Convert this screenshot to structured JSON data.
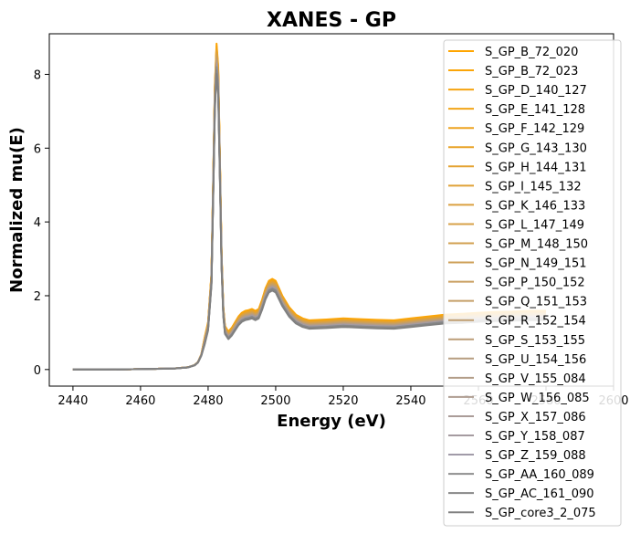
{
  "chart_data": {
    "type": "line",
    "title": "XANES - GP",
    "xlabel": "Energy (eV)",
    "ylabel": "Normalized mu(E)",
    "xlim": [
      2433,
      2600
    ],
    "ylim": [
      -0.45,
      9.1
    ],
    "xticks": [
      2440,
      2460,
      2480,
      2500,
      2520,
      2540,
      2560,
      2580,
      2600
    ],
    "yticks": [
      0,
      2,
      4,
      6,
      8
    ],
    "grid": false,
    "legend_position": "upper-right",
    "x": [
      2440,
      2450,
      2460,
      2465,
      2470,
      2474,
      2476,
      2477,
      2478,
      2479,
      2480,
      2481,
      2481.5,
      2482,
      2482.5,
      2483,
      2483.5,
      2484,
      2484.5,
      2485,
      2486,
      2487,
      2488,
      2489,
      2490,
      2491,
      2492,
      2493,
      2494,
      2495,
      2496,
      2497,
      2498,
      2499,
      2500,
      2501,
      2502,
      2504,
      2506,
      2508,
      2510,
      2515,
      2520,
      2525,
      2530,
      2535,
      2540,
      2545,
      2550,
      2555,
      2560,
      2565,
      2570,
      2575,
      2580
    ],
    "reference_values": [
      0,
      0,
      0.01,
      0.02,
      0.03,
      0.06,
      0.12,
      0.2,
      0.4,
      0.8,
      1.2,
      2.5,
      5.0,
      7.5,
      8.6,
      8.0,
      5.5,
      3.0,
      1.6,
      1.1,
      0.95,
      1.05,
      1.2,
      1.35,
      1.45,
      1.5,
      1.52,
      1.55,
      1.5,
      1.55,
      1.8,
      2.1,
      2.3,
      2.35,
      2.3,
      2.1,
      1.9,
      1.6,
      1.4,
      1.3,
      1.25,
      1.27,
      1.3,
      1.28,
      1.26,
      1.25,
      1.3,
      1.35,
      1.4,
      1.42,
      1.45,
      1.47,
      1.48,
      1.5,
      1.5
    ],
    "series": [
      {
        "name": "S_GP_B_72_020",
        "color": "#ffa500",
        "scale": 1.02,
        "offset": 0.06
      },
      {
        "name": "S_GP_B_72_023",
        "color": "#fba508",
        "scale": 1.01,
        "offset": 0.05
      },
      {
        "name": "S_GP_D_140_127",
        "color": "#f6a410",
        "scale": 1.015,
        "offset": 0.04
      },
      {
        "name": "S_GP_E_141_128",
        "color": "#f2a418",
        "scale": 1.0,
        "offset": 0.05
      },
      {
        "name": "S_GP_F_142_129",
        "color": "#eda320",
        "scale": 1.005,
        "offset": 0.03
      },
      {
        "name": "S_GP_G_143_130",
        "color": "#e9a328",
        "scale": 0.995,
        "offset": 0.04
      },
      {
        "name": "S_GP_H_144_131",
        "color": "#e4a230",
        "scale": 1.0,
        "offset": 0.02
      },
      {
        "name": "S_GP_I_145_132",
        "color": "#e0a238",
        "scale": 0.99,
        "offset": 0.03
      },
      {
        "name": "S_GP_K_146_133",
        "color": "#dba140",
        "scale": 0.995,
        "offset": 0.01
      },
      {
        "name": "S_GP_L_147_149",
        "color": "#d7a148",
        "scale": 0.985,
        "offset": 0.02
      },
      {
        "name": "S_GP_M_148_150",
        "color": "#d2a050",
        "scale": 0.99,
        "offset": 0.0
      },
      {
        "name": "S_GP_N_149_151",
        "color": "#cea058",
        "scale": 0.98,
        "offset": 0.01
      },
      {
        "name": "S_GP_P_150_152",
        "color": "#c99f60",
        "scale": 0.985,
        "offset": -0.01
      },
      {
        "name": "S_GP_Q_151_153",
        "color": "#c59f68",
        "scale": 0.975,
        "offset": 0.0
      },
      {
        "name": "S_GP_R_152_154",
        "color": "#c09e70",
        "scale": 0.98,
        "offset": -0.02
      },
      {
        "name": "S_GP_S_153_155",
        "color": "#bc9e78",
        "scale": 0.97,
        "offset": -0.01
      },
      {
        "name": "S_GP_U_154_156",
        "color": "#b79d80",
        "scale": 0.975,
        "offset": -0.03
      },
      {
        "name": "S_GP_V_155_084",
        "color": "#b39d88",
        "scale": 0.965,
        "offset": -0.02
      },
      {
        "name": "S_GP_W_156_085",
        "color": "#ae9c90",
        "scale": 0.97,
        "offset": -0.04
      },
      {
        "name": "S_GP_X_157_086",
        "color": "#aa9c98",
        "scale": 0.96,
        "offset": -0.03
      },
      {
        "name": "S_GP_Y_158_087",
        "color": "#a59ba0",
        "scale": 0.965,
        "offset": -0.05
      },
      {
        "name": "S_GP_Z_159_088",
        "color": "#a19ba8",
        "scale": 0.955,
        "offset": -0.04
      },
      {
        "name": "S_GP_AA_160_089",
        "color": "#8e8e8e",
        "scale": 0.96,
        "offset": -0.06
      },
      {
        "name": "S_GP_AC_161_090",
        "color": "#878787",
        "scale": 0.95,
        "offset": -0.05
      },
      {
        "name": "S_GP_core3_2_075",
        "color": "#808080",
        "scale": 0.94,
        "offset": -0.07
      }
    ]
  }
}
